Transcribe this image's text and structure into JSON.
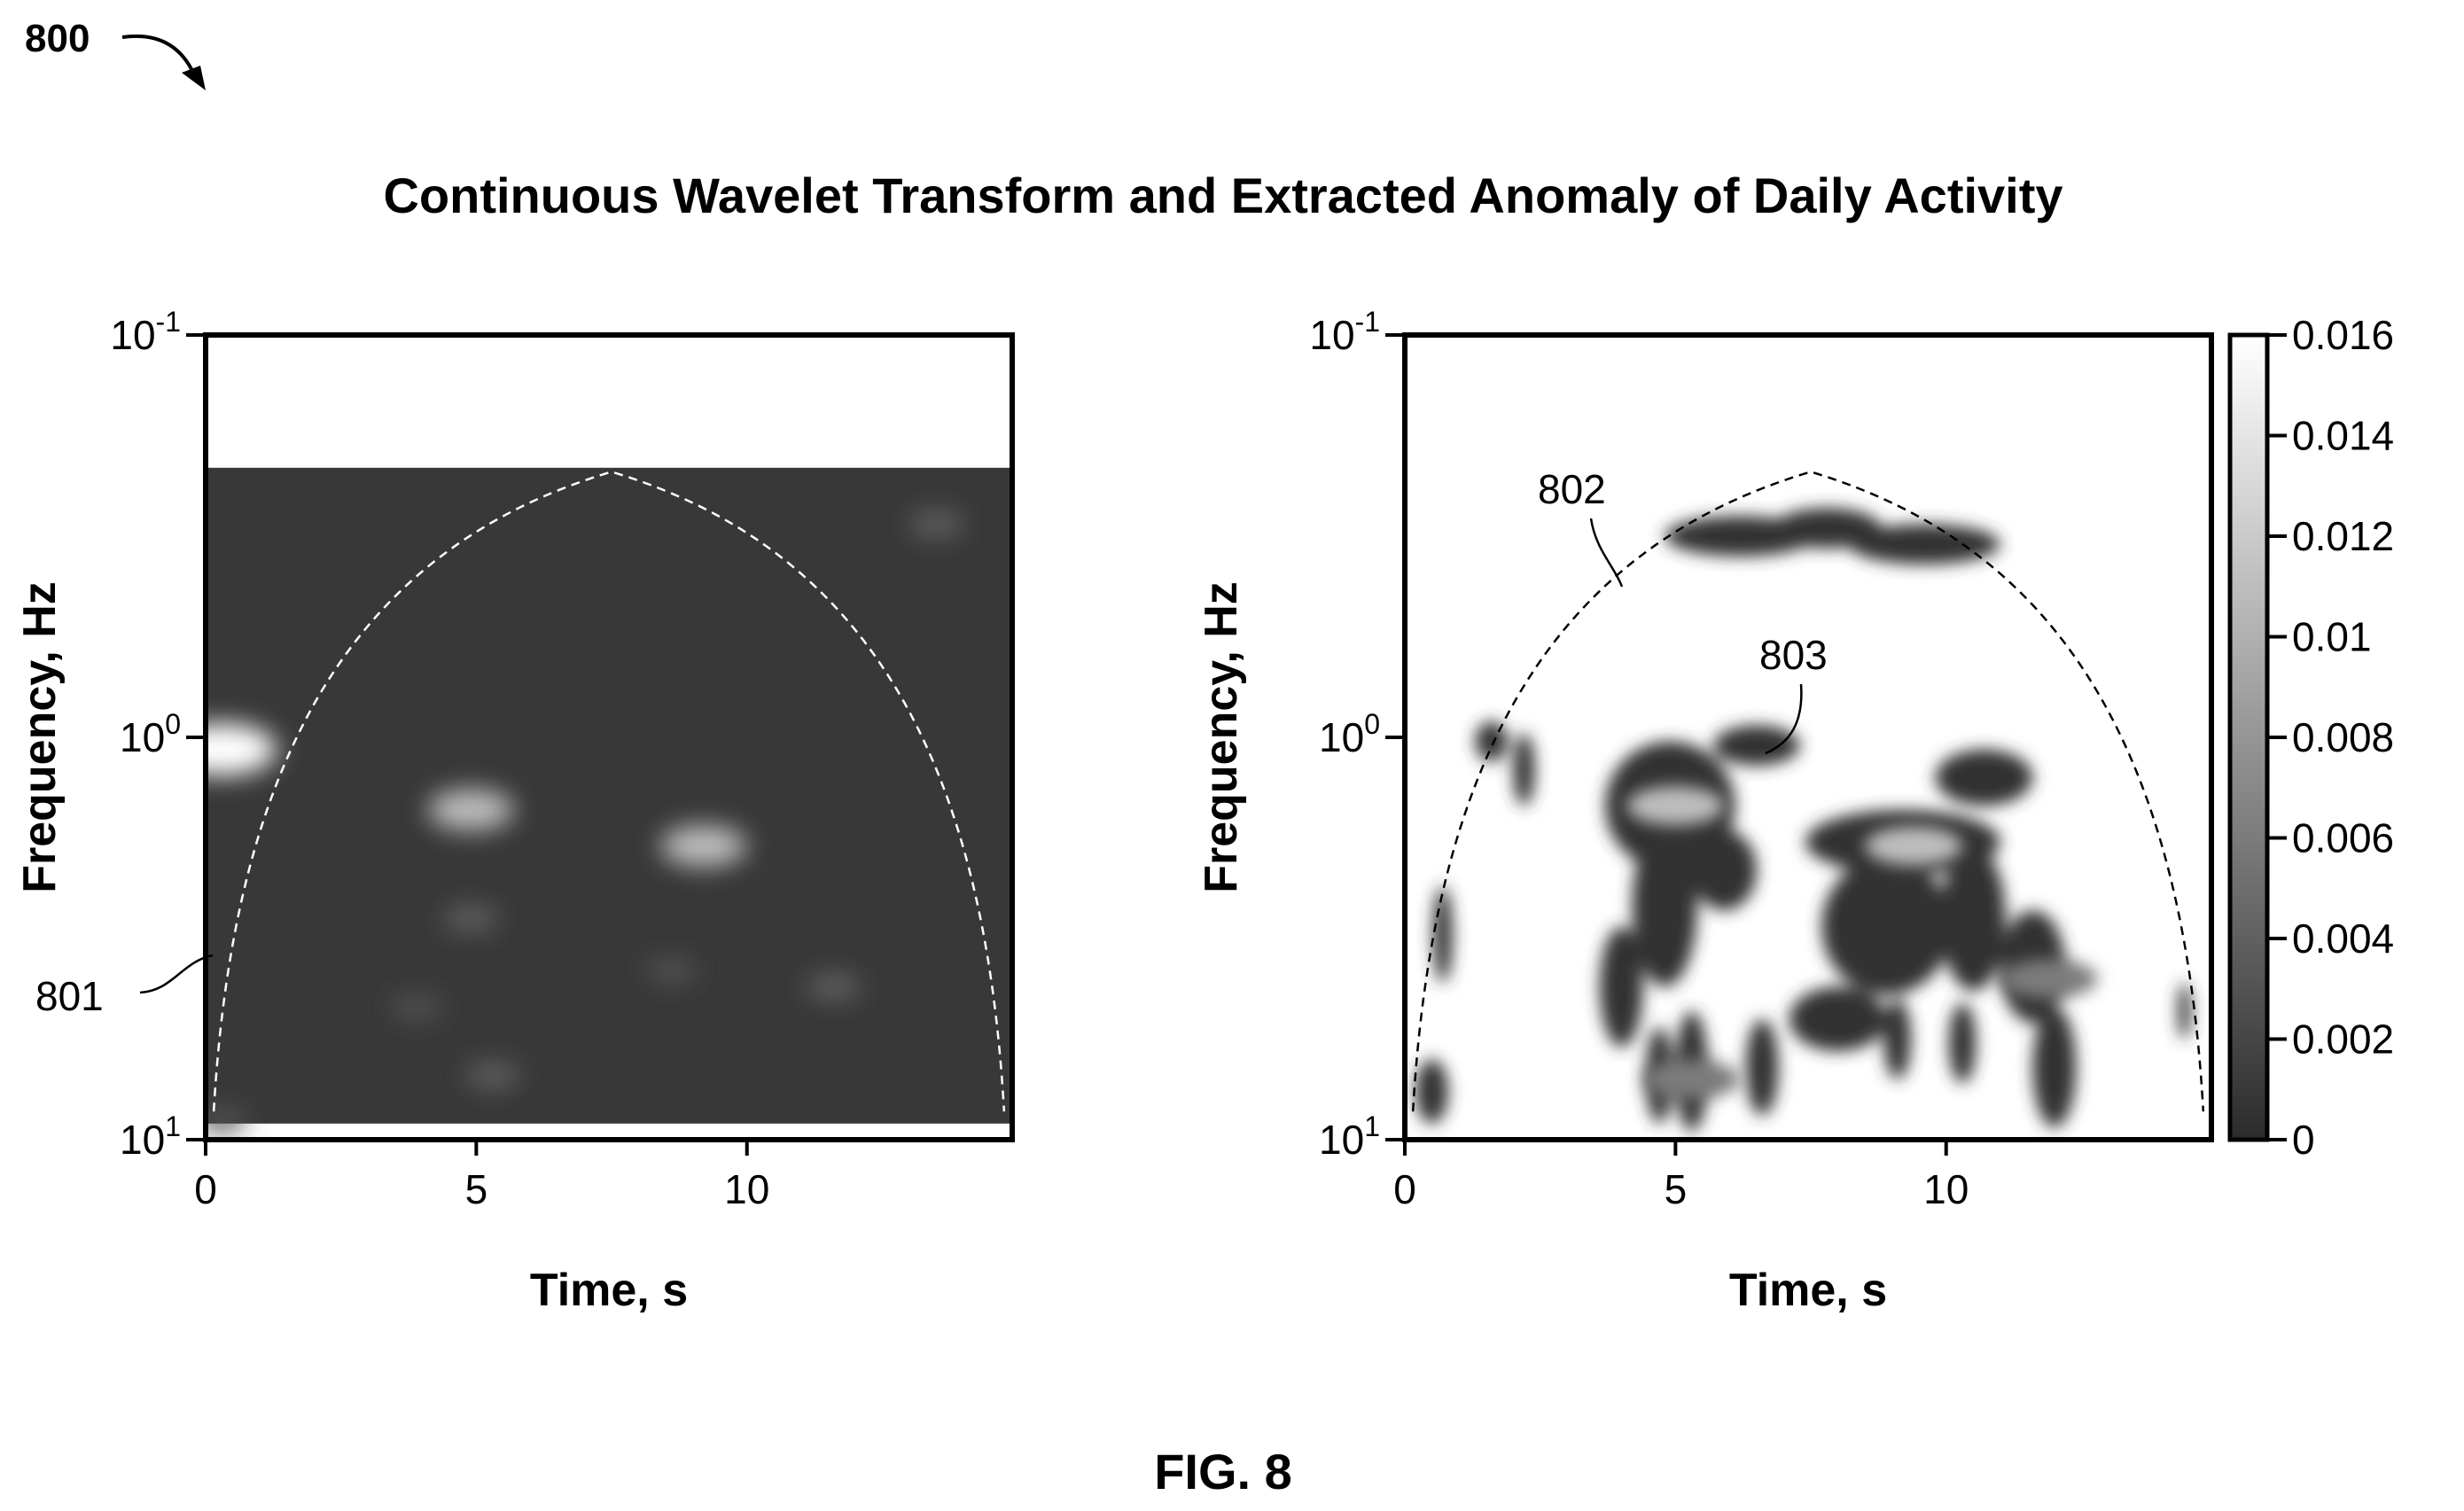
{
  "figure": {
    "ref_number": "800",
    "title": "Continuous Wavelet Transform and Extracted Anomaly of Daily Activity",
    "caption": "FIG. 8"
  },
  "chart_data": [
    {
      "type": "heatmap",
      "panel": "left",
      "title": "",
      "xlabel": "Time, s",
      "ylabel": "Frequency, Hz",
      "xlim": [
        0,
        14.9
      ],
      "ylim_log10": [
        -1,
        1
      ],
      "y_scale": "log",
      "y_axis_inverted": true,
      "x_ticks": [
        {
          "value": 0,
          "label": "0"
        },
        {
          "value": 5,
          "label": "5"
        },
        {
          "value": 10,
          "label": "10"
        }
      ],
      "y_ticks": [
        {
          "value": -1,
          "label": "10",
          "exp": "-1"
        },
        {
          "value": 0,
          "label": "10",
          "exp": "0"
        },
        {
          "value": 1,
          "label": "10",
          "exp": "1"
        }
      ],
      "data_region_log10": [
        -0.67,
        0.96
      ],
      "background_value": 0.001,
      "blobs": [
        {
          "t": 0.3,
          "f": 0.03,
          "value": 0.016
        },
        {
          "t": 4.9,
          "f": 0.18,
          "value": 0.011
        },
        {
          "t": 9.2,
          "f": 0.27,
          "value": 0.011
        },
        {
          "t": 13.5,
          "f": -0.53,
          "value": 0.004
        },
        {
          "t": 4.9,
          "f": 0.45,
          "value": 0.004
        },
        {
          "t": 11.6,
          "f": 0.62,
          "value": 0.004
        },
        {
          "t": 8.6,
          "f": 0.58,
          "value": 0.003
        },
        {
          "t": 5.3,
          "f": 0.84,
          "value": 0.004
        },
        {
          "t": 3.9,
          "f": 0.67,
          "value": 0.003
        },
        {
          "t": 0.3,
          "f": 0.95,
          "value": 0.003
        }
      ],
      "cone_of_influence": {
        "apex": [
          7.5,
          -0.66
        ],
        "base_left": [
          0.15,
          0.93
        ],
        "base_right": [
          14.75,
          0.93
        ],
        "style": "dashed-white"
      },
      "annotation": {
        "label": "801"
      }
    },
    {
      "type": "heatmap",
      "panel": "right",
      "title": "",
      "xlabel": "Time, s",
      "ylabel": "Frequency, Hz",
      "xlim": [
        0,
        14.9
      ],
      "ylim_log10": [
        -1,
        1
      ],
      "y_scale": "log",
      "y_axis_inverted": true,
      "x_ticks": [
        {
          "value": 0,
          "label": "0"
        },
        {
          "value": 5,
          "label": "5"
        },
        {
          "value": 10,
          "label": "10"
        }
      ],
      "y_ticks": [
        {
          "value": -1,
          "label": "10",
          "exp": "-1"
        },
        {
          "value": 0,
          "label": "10",
          "exp": "0"
        },
        {
          "value": 1,
          "label": "10",
          "exp": "1"
        }
      ],
      "background_value": 0.016,
      "anomaly_regions": [
        {
          "t": 6.2,
          "f": -0.5,
          "rt": 1.4,
          "rf": 0.05
        },
        {
          "t": 7.8,
          "f": -0.52,
          "rt": 1.0,
          "rf": 0.05
        },
        {
          "t": 9.6,
          "f": -0.48,
          "rt": 1.4,
          "rf": 0.05
        },
        {
          "t": 2.2,
          "f": 0.08,
          "rt": 0.2,
          "rf": 0.09
        },
        {
          "t": 1.6,
          "f": 0.01,
          "rt": 0.3,
          "rf": 0.05
        },
        {
          "t": 4.9,
          "f": 0.17,
          "rt": 1.2,
          "rf": 0.16
        },
        {
          "t": 4.8,
          "f": 0.42,
          "rt": 0.6,
          "rf": 0.2
        },
        {
          "t": 5.9,
          "f": 0.33,
          "rt": 0.6,
          "rf": 0.1
        },
        {
          "t": 6.5,
          "f": 0.02,
          "rt": 0.8,
          "rf": 0.05
        },
        {
          "t": 9.2,
          "f": 0.26,
          "rt": 1.8,
          "rf": 0.08
        },
        {
          "t": 8.9,
          "f": 0.47,
          "rt": 1.2,
          "rf": 0.17
        },
        {
          "t": 10.7,
          "f": 0.1,
          "rt": 0.9,
          "rf": 0.07
        },
        {
          "t": 10.5,
          "f": 0.45,
          "rt": 0.6,
          "rf": 0.18
        },
        {
          "t": 11.6,
          "f": 0.57,
          "rt": 0.6,
          "rf": 0.14
        },
        {
          "t": 12.0,
          "f": 0.82,
          "rt": 0.4,
          "rf": 0.15
        },
        {
          "t": 8.0,
          "f": 0.7,
          "rt": 0.9,
          "rf": 0.08
        },
        {
          "t": 4.0,
          "f": 0.62,
          "rt": 0.4,
          "rf": 0.15
        },
        {
          "t": 5.3,
          "f": 0.83,
          "rt": 0.3,
          "rf": 0.15
        },
        {
          "t": 4.7,
          "f": 0.84,
          "rt": 0.25,
          "rf": 0.12
        },
        {
          "t": 6.6,
          "f": 0.82,
          "rt": 0.3,
          "rf": 0.12
        },
        {
          "t": 9.1,
          "f": 0.75,
          "rt": 0.25,
          "rf": 0.1
        },
        {
          "t": 10.3,
          "f": 0.76,
          "rt": 0.25,
          "rf": 0.1
        },
        {
          "t": 0.7,
          "f": 0.49,
          "rt": 0.18,
          "rf": 0.12
        },
        {
          "t": 0.5,
          "f": 0.88,
          "rt": 0.3,
          "rf": 0.08
        },
        {
          "t": 14.4,
          "f": 0.68,
          "rt": 0.12,
          "rf": 0.07
        }
      ],
      "bright_cores": [
        {
          "t": 5.0,
          "f": 0.17,
          "value": 0.011
        },
        {
          "t": 9.4,
          "f": 0.27,
          "value": 0.011
        },
        {
          "t": 11.9,
          "f": 0.6,
          "value": 0.006
        },
        {
          "t": 5.3,
          "f": 0.85,
          "value": 0.006
        }
      ],
      "cone_of_influence": {
        "apex": [
          7.5,
          -0.66
        ],
        "base_left": [
          0.15,
          0.93
        ],
        "base_right": [
          14.75,
          0.93
        ],
        "style": "dashed-black"
      },
      "annotations": [
        {
          "label": "802"
        },
        {
          "label": "803"
        }
      ],
      "colorbar": {
        "vmin": 0,
        "vmax": 0.016,
        "colormap": "gray",
        "low_color": "#2b2b2b",
        "high_color": "#ffffff",
        "ticks": [
          {
            "value": 0.016,
            "label": "0.016"
          },
          {
            "value": 0.014,
            "label": "0.014"
          },
          {
            "value": 0.012,
            "label": "0.012"
          },
          {
            "value": 0.01,
            "label": "0.01"
          },
          {
            "value": 0.008,
            "label": "0.008"
          },
          {
            "value": 0.006,
            "label": "0.006"
          },
          {
            "value": 0.004,
            "label": "0.004"
          },
          {
            "value": 0.002,
            "label": "0.002"
          },
          {
            "value": 0,
            "label": "0"
          }
        ]
      }
    }
  ]
}
